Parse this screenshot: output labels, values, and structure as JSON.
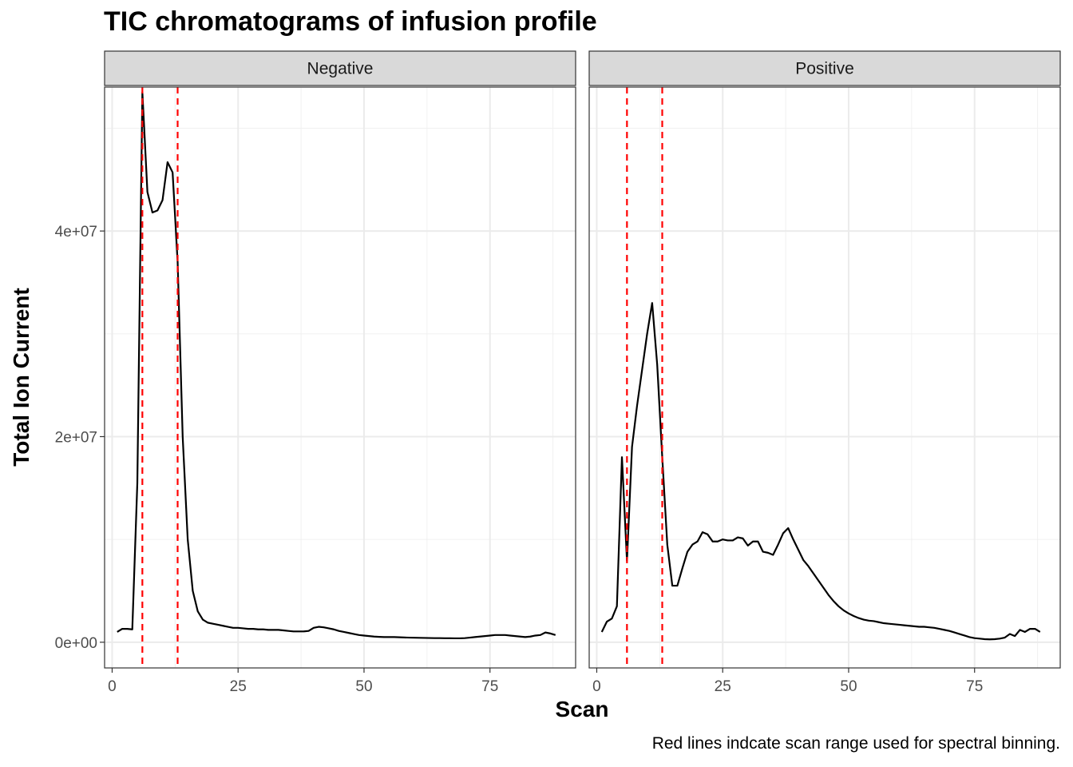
{
  "chart_data": {
    "type": "line",
    "title": "TIC chromatograms of infusion profile",
    "xlabel": "Scan",
    "ylabel": "Total Ion Current",
    "caption": "Red lines indcate scan range used for spectral binning.",
    "xlim": [
      -1.5,
      92
    ],
    "ylim": [
      -2500000,
      54000000
    ],
    "x_ticks": [
      0,
      25,
      50,
      75
    ],
    "x_tick_labels": [
      "0",
      "25",
      "50",
      "75"
    ],
    "y_ticks": [
      0,
      20000000,
      40000000
    ],
    "y_tick_labels": [
      "0e+00",
      "2e+07",
      "4e+07"
    ],
    "grid": true,
    "reference_lines": {
      "x": [
        6,
        13
      ],
      "color": "#ff0000",
      "style": "dashed"
    },
    "line_color": "#000000",
    "panels": [
      {
        "name": "Negative",
        "x": [
          1,
          2,
          3,
          4,
          5,
          6,
          7,
          8,
          9,
          10,
          11,
          12,
          13,
          14,
          15,
          16,
          17,
          18,
          19,
          20,
          21,
          22,
          23,
          24,
          25,
          26,
          27,
          28,
          29,
          30,
          31,
          32,
          33,
          34,
          35,
          36,
          37,
          38,
          39,
          40,
          41,
          42,
          43,
          44,
          45,
          46,
          47,
          48,
          49,
          50,
          51,
          52,
          53,
          54,
          55,
          56,
          57,
          58,
          59,
          60,
          61,
          62,
          63,
          64,
          65,
          66,
          67,
          68,
          69,
          70,
          71,
          72,
          73,
          74,
          75,
          76,
          77,
          78,
          79,
          80,
          81,
          82,
          83,
          84,
          85,
          86,
          87,
          88
        ],
        "y": [
          1000000,
          1300000,
          1300000,
          1250000,
          15500000,
          53500000,
          43800000,
          41800000,
          42000000,
          43000000,
          46700000,
          45700000,
          37000000,
          20000000,
          10000000,
          5000000,
          3000000,
          2200000,
          1900000,
          1800000,
          1700000,
          1600000,
          1500000,
          1400000,
          1400000,
          1350000,
          1300000,
          1300000,
          1250000,
          1250000,
          1200000,
          1200000,
          1200000,
          1150000,
          1100000,
          1050000,
          1050000,
          1050000,
          1100000,
          1400000,
          1500000,
          1450000,
          1350000,
          1250000,
          1100000,
          1000000,
          900000,
          800000,
          700000,
          650000,
          600000,
          550000,
          520000,
          500000,
          500000,
          500000,
          480000,
          460000,
          450000,
          440000,
          430000,
          420000,
          410000,
          400000,
          400000,
          390000,
          390000,
          380000,
          380000,
          400000,
          450000,
          500000,
          550000,
          600000,
          650000,
          700000,
          700000,
          700000,
          650000,
          600000,
          550000,
          500000,
          550000,
          650000,
          700000,
          950000,
          850000,
          700000
        ]
      },
      {
        "name": "Positive",
        "x": [
          1,
          2,
          3,
          4,
          5,
          6,
          7,
          8,
          9,
          10,
          11,
          12,
          13,
          14,
          15,
          16,
          17,
          18,
          19,
          20,
          21,
          22,
          23,
          24,
          25,
          26,
          27,
          28,
          29,
          30,
          31,
          32,
          33,
          34,
          35,
          36,
          37,
          38,
          39,
          40,
          41,
          42,
          43,
          44,
          45,
          46,
          47,
          48,
          49,
          50,
          51,
          52,
          53,
          54,
          55,
          56,
          57,
          58,
          59,
          60,
          61,
          62,
          63,
          64,
          65,
          66,
          67,
          68,
          69,
          70,
          71,
          72,
          73,
          74,
          75,
          76,
          77,
          78,
          79,
          80,
          81,
          82,
          83,
          84,
          85,
          86,
          87,
          88
        ],
        "y": [
          1000000,
          2000000,
          2300000,
          3500000,
          18000000,
          7900000,
          19000000,
          23000000,
          26500000,
          30000000,
          33000000,
          27000000,
          18000000,
          9500000,
          5500000,
          5500000,
          7200000,
          8800000,
          9500000,
          9800000,
          10700000,
          10500000,
          9800000,
          9800000,
          10000000,
          9900000,
          9900000,
          10200000,
          10100000,
          9400000,
          9800000,
          9800000,
          8800000,
          8700000,
          8500000,
          9500000,
          10600000,
          11100000,
          10000000,
          9000000,
          8000000,
          7400000,
          6700000,
          6000000,
          5300000,
          4600000,
          4000000,
          3500000,
          3100000,
          2800000,
          2550000,
          2350000,
          2200000,
          2100000,
          2050000,
          1950000,
          1850000,
          1800000,
          1750000,
          1700000,
          1650000,
          1600000,
          1550000,
          1500000,
          1500000,
          1450000,
          1400000,
          1300000,
          1200000,
          1100000,
          950000,
          800000,
          650000,
          500000,
          400000,
          350000,
          300000,
          280000,
          300000,
          350000,
          450000,
          800000,
          600000,
          1200000,
          1000000,
          1300000,
          1300000,
          1000000
        ]
      }
    ]
  }
}
